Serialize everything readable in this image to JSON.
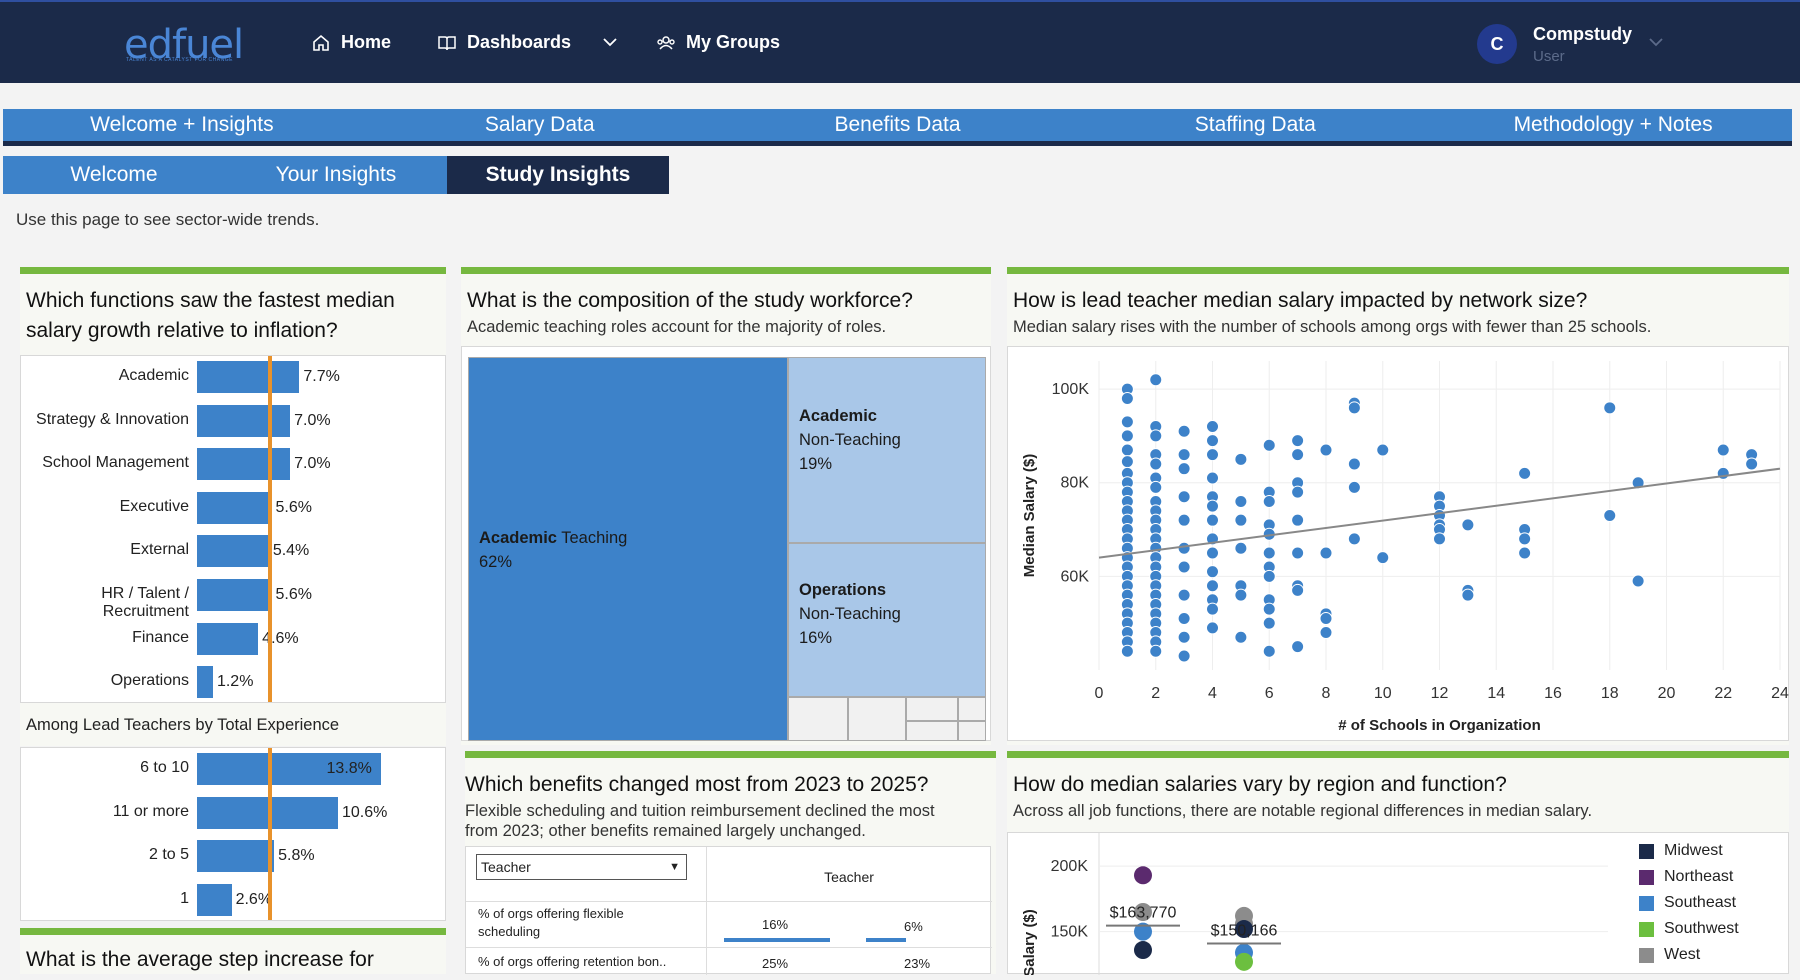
{
  "header": {
    "logo": "edfuel",
    "logo_tagline": "TALENT AS A CATALYST FOR CHANGE",
    "nav": [
      {
        "label": "Home",
        "icon": "home-icon"
      },
      {
        "label": "Dashboards",
        "icon": "book-icon"
      },
      {
        "label": "My Groups",
        "icon": "groups-icon"
      }
    ],
    "user": {
      "initial": "C",
      "name": "Compstudy",
      "role": "User"
    }
  },
  "main_tabs": [
    "Welcome + Insights",
    "Salary Data",
    "Benefits Data",
    "Staffing Data",
    "Methodology + Notes"
  ],
  "sub_tabs": [
    {
      "label": "Welcome",
      "active": false
    },
    {
      "label": "Your Insights",
      "active": false
    },
    {
      "label": "Study Insights",
      "active": true
    }
  ],
  "intro": "Use this page to see sector-wide trends.",
  "colors": {
    "bar": "#3d82c9",
    "reference_line": "#e8922b",
    "accent_green": "#76b83f",
    "navy": "#1b2a49"
  },
  "card_growth": {
    "title_line1": "Which functions saw the fastest median",
    "title_line2": "salary growth relative to inflation?",
    "section2_label": "Among Lead Teachers by Total Experience",
    "next_title": "What is the average step increase for"
  },
  "card_composition": {
    "title": "What is the composition of the study workforce?",
    "subtitle": "Academic teaching roles account for the majority of roles.",
    "blocks": [
      {
        "bold": "Academic",
        "rest": " Teaching",
        "pct": "62%"
      },
      {
        "bold": "Academic",
        "line2": "Non-Teaching",
        "pct": "19%"
      },
      {
        "bold": "Operations",
        "line2": "Non-Teaching",
        "pct": "16%"
      }
    ]
  },
  "card_scatter": {
    "title": "How is lead teacher median salary impacted by network size?",
    "subtitle": "Median salary rises with the number of schools among orgs with fewer than 25 schools."
  },
  "card_benefits": {
    "title": "Which benefits changed most from 2023 to 2025?",
    "subtitle_line1": "Flexible scheduling and tuition reimbursement declined the most",
    "subtitle_line2": "from 2023; other benefits remained largely unchanged.",
    "dropdown_value": "Teacher",
    "column_header": "Teacher",
    "rows": [
      {
        "label_line1": "% of orgs offering flexible",
        "label_line2": "scheduling",
        "v2023": "16%",
        "v2025": "6%",
        "f2023": 0.16,
        "f2025": 0.06
      },
      {
        "label_line1": "% of orgs offering retention bon..",
        "label_line2": "",
        "v2023": "25%",
        "v2025": "23%",
        "f2023": 0.25,
        "f2025": 0.23
      }
    ]
  },
  "card_region": {
    "title": "How do median salaries vary by region and function?",
    "subtitle": "Across all job functions, there are notable regional differences in median salary.",
    "ylabel": "Salary ($)",
    "ticks": [
      "200K",
      "150K"
    ],
    "labels": [
      "$163,770",
      "$150,166"
    ],
    "legend": [
      {
        "name": "Midwest",
        "color": "#1b2a49"
      },
      {
        "name": "Northeast",
        "color": "#5b2a6e"
      },
      {
        "name": "Southeast",
        "color": "#3d82c9"
      },
      {
        "name": "Southwest",
        "color": "#6cbf3f"
      },
      {
        "name": "West",
        "color": "#8c8c8c"
      }
    ]
  },
  "chart_data": [
    {
      "type": "bar",
      "orientation": "horizontal",
      "categories": [
        "Academic",
        "Strategy & Innovation",
        "School Management",
        "Executive",
        "External",
        "HR / Talent / Recruitment",
        "Finance",
        "Operations"
      ],
      "values": [
        7.7,
        7.0,
        7.0,
        5.6,
        5.4,
        5.6,
        4.6,
        1.2
      ],
      "value_labels": [
        "7.7%",
        "7.0%",
        "7.0%",
        "5.6%",
        "5.4%",
        "5.6%",
        "4.6%",
        "1.2%"
      ],
      "reference_line": 5.5,
      "xlim": [
        0,
        14.5
      ]
    },
    {
      "type": "bar",
      "orientation": "horizontal",
      "title": "Among Lead Teachers by Total Experience",
      "categories": [
        "6 to 10",
        "11 or more",
        "2 to 5",
        "1"
      ],
      "values": [
        13.8,
        10.6,
        5.8,
        2.6
      ],
      "value_labels": [
        "13.8%",
        "10.6%",
        "5.8%",
        "2.6%"
      ],
      "reference_line": 5.5,
      "xlim": [
        0,
        14.5
      ]
    },
    {
      "type": "scatter",
      "title": "How is lead teacher median salary impacted by network size?",
      "xlabel": "# of Schools in Organization",
      "ylabel": "Median Salary ($)",
      "xlim": [
        0,
        24
      ],
      "ylim": [
        40000,
        106000
      ],
      "xticks": [
        0,
        2,
        4,
        6,
        8,
        10,
        12,
        14,
        16,
        18,
        20,
        22,
        24
      ],
      "yticks": [
        {
          "v": 60000,
          "label": "60K"
        },
        {
          "v": 80000,
          "label": "80K"
        },
        {
          "v": 100000,
          "label": "100K"
        }
      ],
      "trend": [
        [
          0,
          64000
        ],
        [
          24,
          83000
        ]
      ],
      "points": [
        [
          1,
          100000
        ],
        [
          1,
          98000
        ],
        [
          1,
          93000
        ],
        [
          1,
          90000
        ],
        [
          1,
          87000
        ],
        [
          1,
          84500
        ],
        [
          1,
          82000
        ],
        [
          1,
          80000
        ],
        [
          1,
          78000
        ],
        [
          1,
          76000
        ],
        [
          1,
          74000
        ],
        [
          1,
          72000
        ],
        [
          1,
          70000
        ],
        [
          1,
          68000
        ],
        [
          1,
          66000
        ],
        [
          1,
          64000
        ],
        [
          1,
          62000
        ],
        [
          1,
          60000
        ],
        [
          1,
          58000
        ],
        [
          1,
          56000
        ],
        [
          1,
          54000
        ],
        [
          1,
          52000
        ],
        [
          1,
          50000
        ],
        [
          1,
          48000
        ],
        [
          1,
          46000
        ],
        [
          1,
          44000
        ],
        [
          2,
          102000
        ],
        [
          2,
          92000
        ],
        [
          2,
          90000
        ],
        [
          2,
          86000
        ],
        [
          2,
          84000
        ],
        [
          2,
          81000
        ],
        [
          2,
          79000
        ],
        [
          2,
          76000
        ],
        [
          2,
          74000
        ],
        [
          2,
          72000
        ],
        [
          2,
          70000
        ],
        [
          2,
          68000
        ],
        [
          2,
          66000
        ],
        [
          2,
          64000
        ],
        [
          2,
          62000
        ],
        [
          2,
          60000
        ],
        [
          2,
          58000
        ],
        [
          2,
          56000
        ],
        [
          2,
          54000
        ],
        [
          2,
          52000
        ],
        [
          2,
          50000
        ],
        [
          2,
          48000
        ],
        [
          2,
          46000
        ],
        [
          2,
          44000
        ],
        [
          3,
          91000
        ],
        [
          3,
          86000
        ],
        [
          3,
          83000
        ],
        [
          3,
          77000
        ],
        [
          3,
          72000
        ],
        [
          3,
          66000
        ],
        [
          3,
          62000
        ],
        [
          3,
          56000
        ],
        [
          3,
          51000
        ],
        [
          3,
          47000
        ],
        [
          3,
          43000
        ],
        [
          4,
          92000
        ],
        [
          4,
          89000
        ],
        [
          4,
          86000
        ],
        [
          4,
          81000
        ],
        [
          4,
          77000
        ],
        [
          4,
          75000
        ],
        [
          4,
          72000
        ],
        [
          4,
          68000
        ],
        [
          4,
          65000
        ],
        [
          4,
          61000
        ],
        [
          4,
          58000
        ],
        [
          4,
          55000
        ],
        [
          4,
          53000
        ],
        [
          4,
          49000
        ],
        [
          5,
          85000
        ],
        [
          5,
          76000
        ],
        [
          5,
          72000
        ],
        [
          5,
          66000
        ],
        [
          5,
          58000
        ],
        [
          5,
          56000
        ],
        [
          5,
          47000
        ],
        [
          6,
          88000
        ],
        [
          6,
          78000
        ],
        [
          6,
          76000
        ],
        [
          6,
          71000
        ],
        [
          6,
          69000
        ],
        [
          6,
          65000
        ],
        [
          6,
          62000
        ],
        [
          6,
          60000
        ],
        [
          6,
          55000
        ],
        [
          6,
          53000
        ],
        [
          6,
          50000
        ],
        [
          6,
          44000
        ],
        [
          7,
          89000
        ],
        [
          7,
          86000
        ],
        [
          7,
          80000
        ],
        [
          7,
          78000
        ],
        [
          7,
          72000
        ],
        [
          7,
          65000
        ],
        [
          7,
          58000
        ],
        [
          7,
          57000
        ],
        [
          7,
          45000
        ],
        [
          8,
          87000
        ],
        [
          8,
          65000
        ],
        [
          8,
          52000
        ],
        [
          8,
          51000
        ],
        [
          8,
          48000
        ],
        [
          9,
          97000
        ],
        [
          9,
          96000
        ],
        [
          9,
          84000
        ],
        [
          9,
          79000
        ],
        [
          9,
          68000
        ],
        [
          10,
          87000
        ],
        [
          10,
          64000
        ],
        [
          12,
          77000
        ],
        [
          12,
          75000
        ],
        [
          12,
          73000
        ],
        [
          12,
          71000
        ],
        [
          12,
          70000
        ],
        [
          12,
          68000
        ],
        [
          13,
          71000
        ],
        [
          13,
          57000
        ],
        [
          13,
          56000
        ],
        [
          15,
          82000
        ],
        [
          15,
          70000
        ],
        [
          15,
          68000
        ],
        [
          15,
          65000
        ],
        [
          18,
          96000
        ],
        [
          18,
          73000
        ],
        [
          19,
          80000
        ],
        [
          19,
          59000
        ],
        [
          22,
          87000
        ],
        [
          22,
          82000
        ],
        [
          23,
          86000
        ],
        [
          23,
          84000
        ]
      ]
    },
    {
      "type": "scatter",
      "title": "How do median salaries vary by region and function?",
      "ylabel": "Salary ($)",
      "ylim": [
        120000,
        210000
      ],
      "yticks": [
        {
          "v": 150000,
          "label": "150K"
        },
        {
          "v": 200000,
          "label": "200K"
        }
      ],
      "medians": [
        {
          "group": 1,
          "value": 163770,
          "label": "$163,770"
        },
        {
          "group": 2,
          "value": 150166,
          "label": "$150,166"
        }
      ],
      "points": [
        {
          "group": 1,
          "region": "Northeast",
          "y": 193000
        },
        {
          "group": 1,
          "region": "West",
          "y": 165000
        },
        {
          "group": 1,
          "region": "Southeast",
          "y": 150000
        },
        {
          "group": 1,
          "region": "Midwest",
          "y": 136000
        },
        {
          "group": 2,
          "region": "West",
          "y": 162000
        },
        {
          "group": 2,
          "region": "West",
          "y": 156000
        },
        {
          "group": 2,
          "region": "Midwest",
          "y": 152000
        },
        {
          "group": 2,
          "region": "Southeast",
          "y": 134000
        },
        {
          "group": 2,
          "region": "Southwest",
          "y": 127000
        }
      ]
    }
  ]
}
